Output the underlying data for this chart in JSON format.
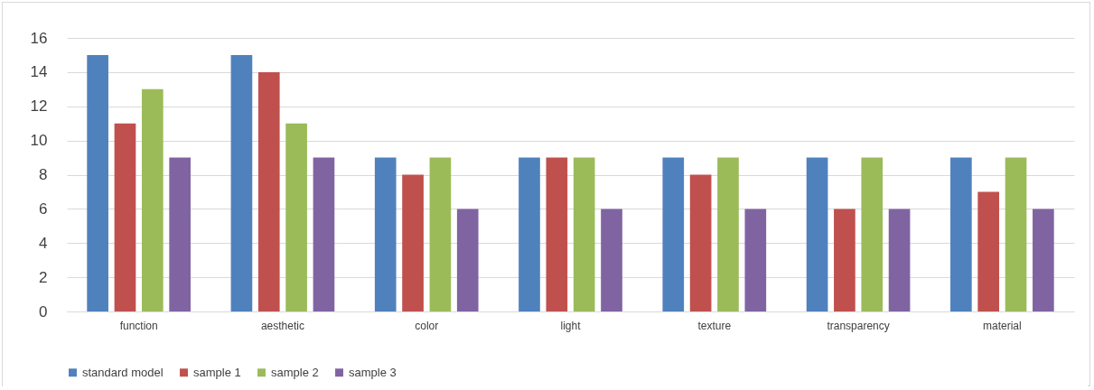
{
  "chart_data": {
    "type": "bar",
    "categories": [
      "function",
      "aesthetic",
      "color",
      "light",
      "texture",
      "transparency",
      "material"
    ],
    "series": [
      {
        "name": "standard model",
        "color": "#4f81bd",
        "values": [
          15,
          15,
          9,
          9,
          9,
          9,
          9
        ]
      },
      {
        "name": "sample 1",
        "color": "#c0504d",
        "values": [
          11,
          14,
          8,
          9,
          8,
          6,
          7
        ]
      },
      {
        "name": "sample 2",
        "color": "#9bbb59",
        "values": [
          13,
          11,
          9,
          9,
          9,
          9,
          9
        ]
      },
      {
        "name": "sample 3",
        "color": "#8064a2",
        "values": [
          9,
          9,
          6,
          6,
          6,
          6,
          6
        ]
      }
    ],
    "ylim": [
      0,
      16
    ],
    "yticks": [
      0,
      2,
      4,
      6,
      8,
      10,
      12,
      14,
      16
    ],
    "grid": "y",
    "legend": "bottom"
  }
}
